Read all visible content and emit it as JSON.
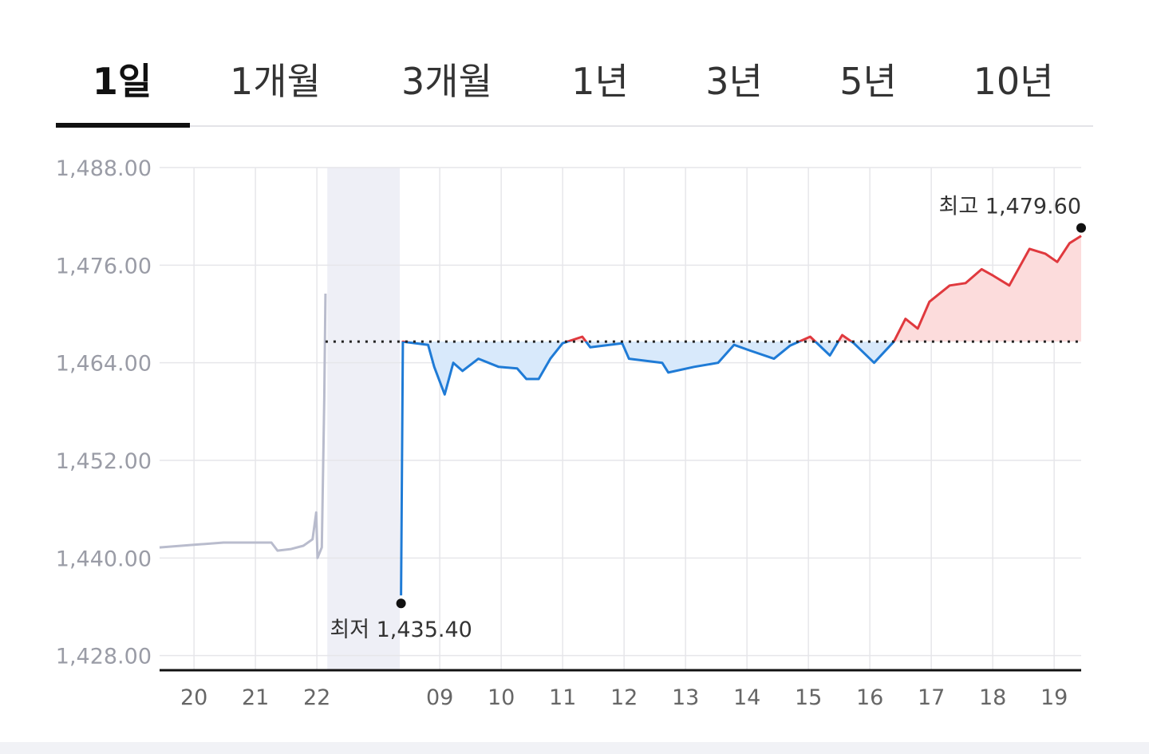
{
  "tabs": {
    "items": [
      "1일",
      "1개월",
      "3개월",
      "1년",
      "3년",
      "5년",
      "10년"
    ],
    "selected": 0
  },
  "chart_data": {
    "type": "line",
    "xlim": [
      19.44,
      34.44
    ],
    "ylim": [
      1426.2,
      1488
    ],
    "yticks": [
      {
        "value": 1488,
        "label": "1,488.00"
      },
      {
        "value": 1476,
        "label": "1,476.00"
      },
      {
        "value": 1464,
        "label": "1,464.00"
      },
      {
        "value": 1452,
        "label": "1,452.00"
      },
      {
        "value": 1440,
        "label": "1,440.00"
      },
      {
        "value": 1428,
        "label": "1,428.00"
      }
    ],
    "xticks": [
      20,
      21,
      22,
      {
        "value": 24,
        "label": "09"
      },
      {
        "value": 25,
        "label": "10"
      },
      {
        "value": 26,
        "label": "11"
      },
      {
        "value": 27,
        "label": "12"
      },
      {
        "value": 28,
        "label": "13"
      },
      {
        "value": 29,
        "label": "14"
      },
      {
        "value": 30,
        "label": "15"
      },
      {
        "value": 31,
        "label": "16"
      },
      {
        "value": 32,
        "label": "17"
      },
      {
        "value": 33,
        "label": "18"
      },
      {
        "value": 34,
        "label": "19"
      }
    ],
    "grid": true,
    "closed_range": [
      22.17,
      23.35
    ],
    "baseline": 1466.6,
    "series": [
      {
        "color": "#b9bccd",
        "x": [
          19.44,
          19.96,
          20.48,
          21.26,
          21.36,
          21.58,
          21.78,
          21.93,
          21.99,
          22.01,
          22.08,
          22.12,
          22.14
        ],
        "values": [
          1441.3,
          1441.6,
          1441.9,
          1441.9,
          1440.9,
          1441.1,
          1441.5,
          1442.3,
          1445.6,
          1440.0,
          1441.3,
          1459.6,
          1472.5
        ]
      },
      {
        "color_up": "#e0393e",
        "color_down": "#1f7bd6",
        "fill_up": "#fcdcdc",
        "fill_down": "#d8e9fb",
        "x": [
          23.37,
          23.4,
          23.81,
          23.91,
          24.08,
          24.22,
          24.37,
          24.63,
          24.96,
          25.26,
          25.41,
          25.61,
          25.8,
          26.0,
          26.32,
          26.45,
          26.97,
          27.08,
          27.62,
          27.72,
          28.14,
          28.53,
          28.79,
          29.05,
          29.44,
          29.7,
          30.03,
          30.35,
          30.55,
          30.74,
          31.07,
          31.39,
          31.58,
          31.78,
          31.97,
          32.3,
          32.56,
          32.82,
          33.01,
          33.27,
          33.6,
          33.86,
          34.05,
          34.25,
          34.44
        ],
        "values": [
          1435.4,
          1466.6,
          1466.2,
          1463.5,
          1460.1,
          1464.0,
          1463.0,
          1464.5,
          1463.5,
          1463.3,
          1462.0,
          1462.0,
          1464.5,
          1466.4,
          1467.2,
          1465.9,
          1466.4,
          1464.5,
          1464.0,
          1462.8,
          1463.5,
          1464.0,
          1466.2,
          1465.5,
          1464.5,
          1466.1,
          1467.2,
          1464.9,
          1467.4,
          1466.4,
          1464.0,
          1466.6,
          1469.4,
          1468.2,
          1471.5,
          1473.5,
          1473.8,
          1475.5,
          1474.7,
          1473.5,
          1478.0,
          1477.4,
          1476.4,
          1478.7,
          1479.6
        ]
      }
    ],
    "annotations": [
      {
        "text": "최저 1,435.40",
        "x": 23.37,
        "y": 1435.4
      },
      {
        "text": "최고 1,479.60",
        "x": 34.44,
        "y": 1479.6
      }
    ]
  }
}
